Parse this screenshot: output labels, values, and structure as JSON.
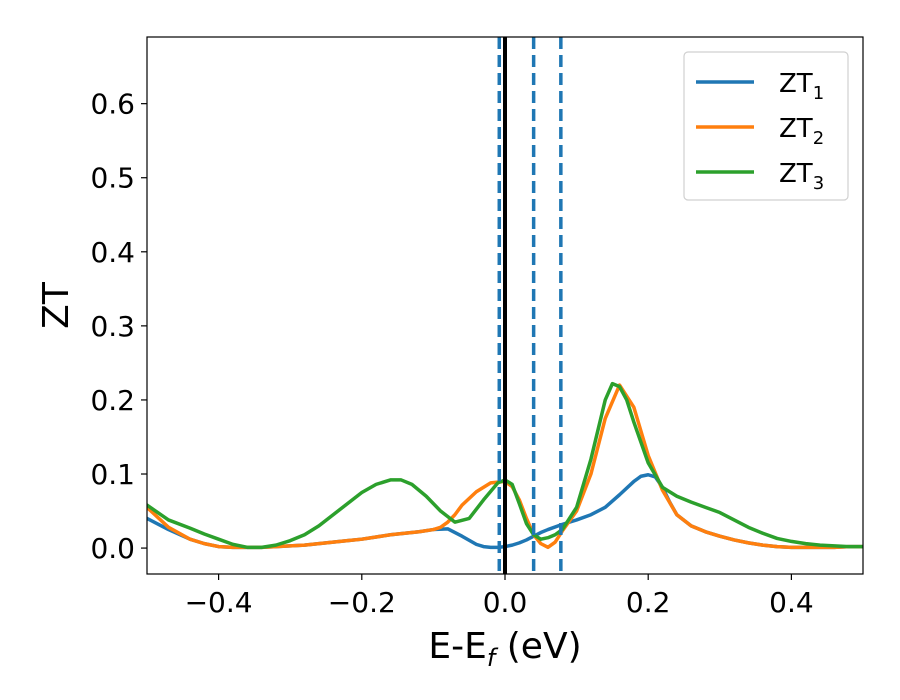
{
  "chart_data": {
    "type": "line",
    "title": "",
    "xlabel": "E-E",
    "xlabel_sub": "f",
    "xlabel_unit": " (eV)",
    "ylabel": "ZT",
    "xlim": [
      -0.5,
      0.5
    ],
    "ylim": [
      -0.035,
      0.69
    ],
    "xticks": [
      -0.4,
      -0.2,
      0.0,
      0.2,
      0.4
    ],
    "xtick_labels": [
      "−0.4",
      "−0.2",
      "0.0",
      "0.2",
      "0.4"
    ],
    "yticks": [
      0.0,
      0.1,
      0.2,
      0.3,
      0.4,
      0.5,
      0.6
    ],
    "ytick_labels": [
      "0.0",
      "0.1",
      "0.2",
      "0.3",
      "0.4",
      "0.5",
      "0.6"
    ],
    "grid": false,
    "legend_position": "top-right",
    "series": [
      {
        "name": "ZT",
        "name_sub": "1",
        "color": "#1f77b4",
        "x": [
          -0.5,
          -0.47,
          -0.44,
          -0.42,
          -0.4,
          -0.38,
          -0.36,
          -0.34,
          -0.32,
          -0.3,
          -0.28,
          -0.26,
          -0.24,
          -0.22,
          -0.2,
          -0.18,
          -0.16,
          -0.14,
          -0.12,
          -0.1,
          -0.08,
          -0.06,
          -0.04,
          -0.03,
          -0.02,
          -0.01,
          0.0,
          0.01,
          0.02,
          0.03,
          0.04,
          0.05,
          0.06,
          0.08,
          0.1,
          0.12,
          0.14,
          0.16,
          0.18,
          0.19,
          0.2,
          0.21,
          0.22,
          0.23,
          0.24,
          0.26,
          0.28,
          0.3,
          0.32,
          0.34,
          0.36,
          0.38,
          0.4,
          0.42,
          0.44,
          0.46,
          0.48,
          0.5
        ],
        "y": [
          0.04,
          0.025,
          0.012,
          0.006,
          0.002,
          0.001,
          0.001,
          0.001,
          0.002,
          0.003,
          0.004,
          0.006,
          0.008,
          0.01,
          0.012,
          0.015,
          0.018,
          0.02,
          0.022,
          0.025,
          0.026,
          0.016,
          0.005,
          0.002,
          0.001,
          0.001,
          0.002,
          0.004,
          0.007,
          0.011,
          0.016,
          0.021,
          0.025,
          0.032,
          0.038,
          0.045,
          0.055,
          0.072,
          0.09,
          0.097,
          0.099,
          0.096,
          0.082,
          0.062,
          0.045,
          0.03,
          0.022,
          0.016,
          0.011,
          0.007,
          0.004,
          0.002,
          0.001,
          0.001,
          0.001,
          0.001,
          0.002,
          0.002
        ]
      },
      {
        "name": "ZT",
        "name_sub": "2",
        "color": "#ff7f0e",
        "x": [
          -0.5,
          -0.47,
          -0.44,
          -0.42,
          -0.4,
          -0.38,
          -0.36,
          -0.34,
          -0.32,
          -0.3,
          -0.28,
          -0.26,
          -0.24,
          -0.22,
          -0.2,
          -0.18,
          -0.16,
          -0.14,
          -0.12,
          -0.1,
          -0.09,
          -0.08,
          -0.07,
          -0.06,
          -0.04,
          -0.02,
          0.0,
          0.01,
          0.02,
          0.03,
          0.04,
          0.05,
          0.06,
          0.07,
          0.08,
          0.1,
          0.12,
          0.14,
          0.16,
          0.18,
          0.2,
          0.22,
          0.24,
          0.26,
          0.28,
          0.3,
          0.32,
          0.34,
          0.36,
          0.38,
          0.4,
          0.42,
          0.44,
          0.46,
          0.48,
          0.5
        ],
        "y": [
          0.055,
          0.028,
          0.012,
          0.006,
          0.002,
          0.001,
          0.001,
          0.001,
          0.002,
          0.003,
          0.004,
          0.006,
          0.008,
          0.01,
          0.012,
          0.015,
          0.018,
          0.02,
          0.022,
          0.025,
          0.028,
          0.035,
          0.045,
          0.058,
          0.076,
          0.088,
          0.09,
          0.083,
          0.065,
          0.04,
          0.018,
          0.006,
          0.001,
          0.008,
          0.023,
          0.05,
          0.1,
          0.175,
          0.22,
          0.19,
          0.125,
          0.078,
          0.045,
          0.03,
          0.022,
          0.016,
          0.011,
          0.007,
          0.004,
          0.002,
          0.001,
          0.001,
          0.001,
          0.001,
          0.002,
          0.002
        ]
      },
      {
        "name": "ZT",
        "name_sub": "3",
        "color": "#2ca02c",
        "x": [
          -0.5,
          -0.47,
          -0.44,
          -0.42,
          -0.4,
          -0.38,
          -0.36,
          -0.34,
          -0.32,
          -0.3,
          -0.28,
          -0.26,
          -0.24,
          -0.22,
          -0.2,
          -0.18,
          -0.16,
          -0.145,
          -0.13,
          -0.11,
          -0.09,
          -0.07,
          -0.05,
          -0.03,
          -0.01,
          0.0,
          0.01,
          0.02,
          0.03,
          0.04,
          0.05,
          0.06,
          0.07,
          0.08,
          0.1,
          0.12,
          0.14,
          0.15,
          0.16,
          0.17,
          0.18,
          0.2,
          0.22,
          0.24,
          0.26,
          0.28,
          0.3,
          0.32,
          0.34,
          0.36,
          0.38,
          0.4,
          0.42,
          0.44,
          0.46,
          0.48,
          0.5
        ],
        "y": [
          0.058,
          0.038,
          0.027,
          0.019,
          0.012,
          0.005,
          0.001,
          0.001,
          0.004,
          0.01,
          0.018,
          0.03,
          0.045,
          0.06,
          0.075,
          0.086,
          0.092,
          0.092,
          0.086,
          0.07,
          0.05,
          0.035,
          0.04,
          0.065,
          0.088,
          0.092,
          0.086,
          0.06,
          0.033,
          0.018,
          0.012,
          0.014,
          0.018,
          0.025,
          0.055,
          0.12,
          0.2,
          0.222,
          0.218,
          0.2,
          0.17,
          0.115,
          0.082,
          0.07,
          0.062,
          0.055,
          0.048,
          0.038,
          0.028,
          0.02,
          0.013,
          0.009,
          0.006,
          0.004,
          0.003,
          0.002,
          0.002
        ]
      }
    ],
    "vertical_lines": [
      {
        "x": -0.008,
        "style": "dashed",
        "color": "#1f77b4"
      },
      {
        "x": 0.0,
        "style": "solid",
        "color": "#000000"
      },
      {
        "x": 0.04,
        "style": "dashed",
        "color": "#1f77b4"
      },
      {
        "x": 0.078,
        "style": "dashed",
        "color": "#1f77b4"
      }
    ]
  }
}
